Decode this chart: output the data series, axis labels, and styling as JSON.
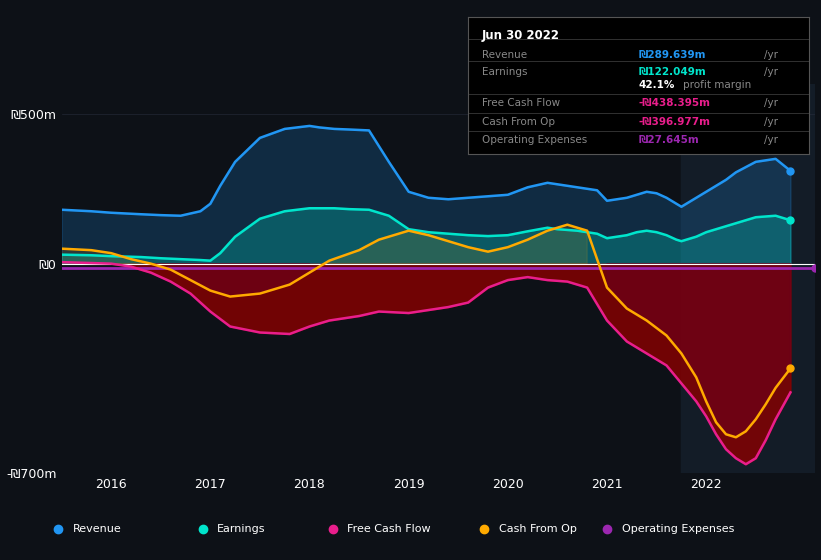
{
  "bg_color": "#0d1117",
  "highlight_bg": "#131c27",
  "colors": {
    "revenue": "#2196f3",
    "earnings": "#00e5cc",
    "free_cash_flow": "#e91e8c",
    "cash_from_op": "#ffaa00",
    "operating_expenses": "#9c27b0"
  },
  "ylim": [
    -700,
    600
  ],
  "xlim": [
    2015.5,
    2023.1
  ],
  "yticks_vals": [
    500,
    0,
    -700
  ],
  "yticks_labels": [
    "₪500m",
    "₪0",
    "-₪700m"
  ],
  "xticks": [
    2016,
    2017,
    2018,
    2019,
    2020,
    2021,
    2022
  ],
  "highlight_start": 2021.75,
  "info_box": {
    "date": "Jun 30 2022",
    "rows": [
      {
        "label": "Revenue",
        "value": "₪289.639m",
        "suffix": " /yr",
        "color": "#2196f3",
        "divider_before": true
      },
      {
        "label": "Earnings",
        "value": "₪122.049m",
        "suffix": " /yr",
        "color": "#00e5cc",
        "divider_before": true
      },
      {
        "label": "",
        "value": "42.1%",
        "suffix": " profit margin",
        "color": "white",
        "divider_before": false
      },
      {
        "label": "Free Cash Flow",
        "value": "-₪438.395m",
        "suffix": " /yr",
        "color": "#e91e8c",
        "divider_before": true
      },
      {
        "label": "Cash From Op",
        "value": "-₪396.977m",
        "suffix": " /yr",
        "color": "#e91e8c",
        "divider_before": true
      },
      {
        "label": "Operating Expenses",
        "value": "₪27.645m",
        "suffix": " /yr",
        "color": "#9c27b0",
        "divider_before": true
      }
    ]
  },
  "legend": [
    {
      "label": "Revenue",
      "color": "#2196f3"
    },
    {
      "label": "Earnings",
      "color": "#00e5cc"
    },
    {
      "label": "Free Cash Flow",
      "color": "#e91e8c"
    },
    {
      "label": "Cash From Op",
      "color": "#ffaa00"
    },
    {
      "label": "Operating Expenses",
      "color": "#9c27b0"
    }
  ],
  "revenue_x": [
    2015.5,
    2015.8,
    2016.0,
    2016.3,
    2016.5,
    2016.7,
    2016.9,
    2017.0,
    2017.1,
    2017.25,
    2017.5,
    2017.75,
    2018.0,
    2018.1,
    2018.25,
    2018.4,
    2018.6,
    2018.8,
    2019.0,
    2019.2,
    2019.4,
    2019.6,
    2019.8,
    2020.0,
    2020.2,
    2020.4,
    2020.5,
    2020.7,
    2020.9,
    2021.0,
    2021.1,
    2021.2,
    2021.3,
    2021.4,
    2021.5,
    2021.6,
    2021.7,
    2021.75,
    2021.9,
    2022.0,
    2022.1,
    2022.2,
    2022.3,
    2022.5,
    2022.7,
    2022.85
  ],
  "revenue_y": [
    180,
    175,
    170,
    165,
    162,
    160,
    175,
    200,
    260,
    340,
    420,
    450,
    460,
    455,
    450,
    448,
    445,
    340,
    240,
    220,
    215,
    220,
    225,
    230,
    255,
    270,
    265,
    255,
    245,
    210,
    215,
    220,
    230,
    240,
    235,
    220,
    200,
    190,
    220,
    240,
    260,
    280,
    305,
    340,
    350,
    310
  ],
  "earnings_x": [
    2015.5,
    2015.8,
    2016.0,
    2016.3,
    2016.5,
    2016.7,
    2016.9,
    2017.0,
    2017.1,
    2017.25,
    2017.5,
    2017.75,
    2018.0,
    2018.1,
    2018.25,
    2018.4,
    2018.6,
    2018.8,
    2019.0,
    2019.2,
    2019.4,
    2019.6,
    2019.8,
    2020.0,
    2020.2,
    2020.4,
    2020.5,
    2020.7,
    2020.9,
    2021.0,
    2021.1,
    2021.2,
    2021.3,
    2021.4,
    2021.5,
    2021.6,
    2021.7,
    2021.75,
    2021.9,
    2022.0,
    2022.1,
    2022.2,
    2022.3,
    2022.5,
    2022.7,
    2022.85
  ],
  "earnings_y": [
    30,
    28,
    25,
    22,
    18,
    15,
    12,
    10,
    35,
    90,
    150,
    175,
    185,
    185,
    185,
    182,
    180,
    160,
    115,
    105,
    100,
    95,
    92,
    95,
    108,
    120,
    115,
    110,
    100,
    85,
    90,
    95,
    105,
    110,
    105,
    95,
    80,
    75,
    90,
    105,
    115,
    125,
    135,
    155,
    160,
    145
  ],
  "fcf_x": [
    2015.5,
    2015.8,
    2016.0,
    2016.2,
    2016.4,
    2016.6,
    2016.8,
    2017.0,
    2017.2,
    2017.5,
    2017.8,
    2018.0,
    2018.2,
    2018.5,
    2018.7,
    2019.0,
    2019.2,
    2019.4,
    2019.6,
    2019.8,
    2020.0,
    2020.2,
    2020.4,
    2020.6,
    2020.8,
    2021.0,
    2021.2,
    2021.4,
    2021.6,
    2021.75,
    2021.9,
    2022.0,
    2022.1,
    2022.2,
    2022.3,
    2022.4,
    2022.5,
    2022.6,
    2022.7,
    2022.85
  ],
  "fcf_y": [
    5,
    2,
    0,
    -10,
    -30,
    -60,
    -100,
    -160,
    -210,
    -230,
    -235,
    -210,
    -190,
    -175,
    -160,
    -165,
    -155,
    -145,
    -130,
    -80,
    -55,
    -45,
    -55,
    -60,
    -80,
    -190,
    -260,
    -300,
    -340,
    -400,
    -460,
    -510,
    -570,
    -620,
    -650,
    -670,
    -650,
    -590,
    -520,
    -430
  ],
  "cashop_x": [
    2015.5,
    2015.8,
    2016.0,
    2016.2,
    2016.4,
    2016.6,
    2016.8,
    2017.0,
    2017.2,
    2017.5,
    2017.8,
    2018.0,
    2018.2,
    2018.5,
    2018.7,
    2019.0,
    2019.2,
    2019.4,
    2019.6,
    2019.8,
    2020.0,
    2020.2,
    2020.4,
    2020.6,
    2020.8,
    2021.0,
    2021.2,
    2021.4,
    2021.6,
    2021.75,
    2021.9,
    2022.0,
    2022.1,
    2022.2,
    2022.3,
    2022.4,
    2022.5,
    2022.6,
    2022.7,
    2022.85
  ],
  "cashop_y": [
    50,
    45,
    35,
    15,
    0,
    -20,
    -55,
    -90,
    -110,
    -100,
    -70,
    -30,
    10,
    45,
    80,
    110,
    95,
    75,
    55,
    40,
    55,
    80,
    110,
    130,
    110,
    -80,
    -150,
    -190,
    -240,
    -300,
    -380,
    -460,
    -530,
    -570,
    -580,
    -560,
    -520,
    -470,
    -415,
    -350
  ],
  "opex_y": -15
}
